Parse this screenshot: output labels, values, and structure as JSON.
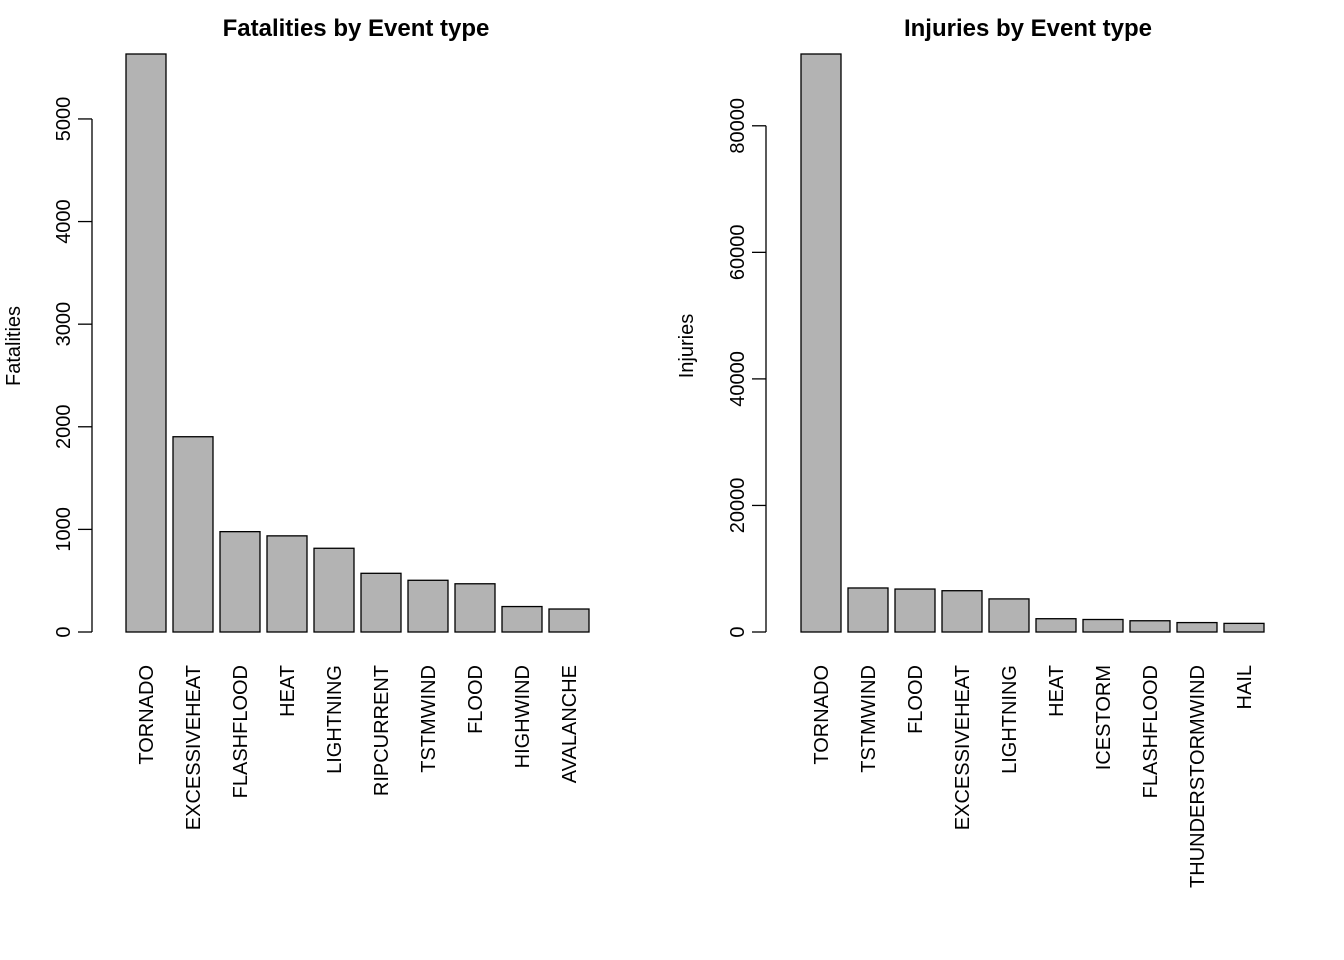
{
  "colors": {
    "bar_fill": "#b3b3b3",
    "bar_stroke": "#000000",
    "background": "#ffffff"
  },
  "chart_data": [
    {
      "type": "bar",
      "title": "Fatalities by Event type",
      "xlabel": "",
      "ylabel": "Fatalities",
      "ylim": [
        0,
        5633
      ],
      "yticks": [
        0,
        1000,
        2000,
        3000,
        4000,
        5000
      ],
      "grid": false,
      "categories": [
        "TORNADO",
        "EXCESSIVEHEAT",
        "FLASHFLOOD",
        "HEAT",
        "LIGHTNING",
        "RIPCURRENT",
        "TSTMWIND",
        "FLOOD",
        "HIGHWIND",
        "AVALANCHE"
      ],
      "values": [
        5633,
        1903,
        978,
        937,
        816,
        572,
        504,
        470,
        248,
        224
      ]
    },
    {
      "type": "bar",
      "title": "Injuries by Event type",
      "xlabel": "",
      "ylabel": "Injuries",
      "ylim": [
        0,
        91346
      ],
      "yticks": [
        0,
        20000,
        40000,
        60000,
        80000
      ],
      "grid": false,
      "categories": [
        "TORNADO",
        "TSTMWIND",
        "FLOOD",
        "EXCESSIVEHEAT",
        "LIGHTNING",
        "HEAT",
        "ICESTORM",
        "FLASHFLOOD",
        "THUNDERSTORMWIND",
        "HAIL"
      ],
      "values": [
        91346,
        6957,
        6789,
        6525,
        5230,
        2100,
        1975,
        1777,
        1488,
        1361
      ]
    }
  ]
}
